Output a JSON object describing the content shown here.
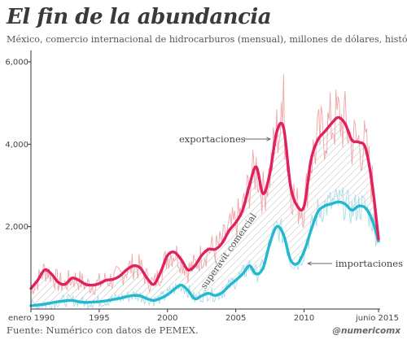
{
  "header": {
    "title": "El fin de la abundancia",
    "subtitle": "México, comercio internacional de hidrocarburos (mensual), millones de dólares, histórico"
  },
  "footer": {
    "source": "Fuente: Numérico con datos de PEMEX.",
    "handle": "@numericomx"
  },
  "chart_data": {
    "type": "line",
    "grid": false,
    "ylim": [
      0,
      6000
    ],
    "xlim": [
      1990,
      2015.45
    ],
    "y_ticks": [
      {
        "value": 2000,
        "label": "2,000"
      },
      {
        "value": 4000,
        "label": "4,000"
      },
      {
        "value": 6000,
        "label": "6,000"
      }
    ],
    "x_ticks": [
      {
        "value": 1990,
        "label": "enero 1990"
      },
      {
        "value": 1995,
        "label": "1995"
      },
      {
        "value": 2000,
        "label": "2000"
      },
      {
        "value": 2005,
        "label": "2005"
      },
      {
        "value": 2010,
        "label": "2010"
      },
      {
        "value": 2015.45,
        "label": "junio 2015"
      }
    ],
    "annotations": {
      "exports": "exportaciones",
      "imports": "importaciones",
      "surplus": "superávit comercial"
    },
    "colors": {
      "exports": "#e0215f",
      "imports": "#22b8cf",
      "exports_raw": "#f2a5a5",
      "imports_raw": "#a8dbe6",
      "axis": "#333333"
    },
    "series": [
      {
        "key": "exports",
        "x": [
          1990,
          1990.5,
          1991,
          1991.5,
          1992,
          1992.5,
          1993,
          1993.5,
          1994,
          1994.5,
          1995,
          1995.5,
          1996,
          1996.5,
          1997,
          1997.5,
          1998,
          1998.5,
          1999,
          1999.5,
          2000,
          2000.5,
          2001,
          2001.5,
          2002,
          2002.5,
          2003,
          2003.5,
          2004,
          2004.5,
          2005,
          2005.5,
          2006,
          2006.5,
          2007,
          2007.5,
          2008,
          2008.5,
          2009,
          2009.5,
          2010,
          2010.5,
          2011,
          2011.5,
          2012,
          2012.5,
          2013,
          2013.5,
          2014,
          2014.5,
          2015,
          2015.45
        ],
        "values": [
          500,
          700,
          950,
          850,
          650,
          600,
          750,
          700,
          600,
          580,
          620,
          700,
          720,
          800,
          950,
          1050,
          1000,
          750,
          600,
          900,
          1300,
          1380,
          1200,
          950,
          1050,
          1300,
          1450,
          1450,
          1600,
          1900,
          2100,
          2400,
          3000,
          3450,
          2800,
          3300,
          4300,
          4400,
          3000,
          2500,
          2500,
          3600,
          4100,
          4300,
          4500,
          4650,
          4500,
          4100,
          4050,
          3900,
          3000,
          1700
        ]
      },
      {
        "key": "imports",
        "x": [
          1990,
          1990.5,
          1991,
          1991.5,
          1992,
          1992.5,
          1993,
          1993.5,
          1994,
          1994.5,
          1995,
          1995.5,
          1996,
          1996.5,
          1997,
          1997.5,
          1998,
          1998.5,
          1999,
          1999.5,
          2000,
          2000.5,
          2001,
          2001.5,
          2002,
          2002.5,
          2003,
          2003.5,
          2004,
          2004.5,
          2005,
          2005.5,
          2006,
          2006.5,
          2007,
          2007.5,
          2008,
          2008.5,
          2009,
          2009.5,
          2010,
          2010.5,
          2011,
          2011.5,
          2012,
          2012.5,
          2013,
          2013.5,
          2014,
          2014.5,
          2015,
          2015.45
        ],
        "values": [
          80,
          100,
          120,
          150,
          180,
          200,
          210,
          180,
          160,
          170,
          180,
          200,
          230,
          260,
          300,
          330,
          320,
          250,
          210,
          260,
          350,
          480,
          580,
          450,
          250,
          320,
          380,
          330,
          400,
          560,
          700,
          850,
          1050,
          850,
          1000,
          1600,
          2000,
          1800,
          1200,
          1100,
          1400,
          1900,
          2350,
          2500,
          2550,
          2600,
          2550,
          2400,
          2500,
          2450,
          2150,
          1650
        ]
      }
    ]
  }
}
